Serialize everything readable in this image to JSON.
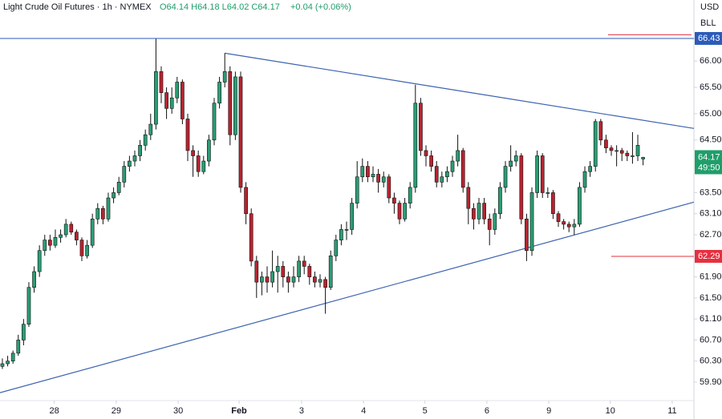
{
  "chart_data": {
    "type": "candlestick",
    "symbol": "Light Crude Oil Futures · 1h · NYMEX",
    "ohlc": "O64.14 H64.18 L64.02 C64.17",
    "change": "+0.04 (+0.06%)",
    "currency": "USD",
    "unit": "BLL",
    "up_color": "#2a9d74",
    "down_color": "#b8232f",
    "candles": [
      [
        60.2,
        60.35,
        60.15,
        60.25
      ],
      [
        60.25,
        60.4,
        60.2,
        60.3
      ],
      [
        60.3,
        60.5,
        60.25,
        60.45
      ],
      [
        60.45,
        60.8,
        60.4,
        60.7
      ],
      [
        60.7,
        61.1,
        60.6,
        61.0
      ],
      [
        61.0,
        61.8,
        60.95,
        61.7
      ],
      [
        61.7,
        62.1,
        61.6,
        62.0
      ],
      [
        62.0,
        62.5,
        61.9,
        62.4
      ],
      [
        62.4,
        62.7,
        62.3,
        62.6
      ],
      [
        62.6,
        62.7,
        62.4,
        62.5
      ],
      [
        62.5,
        62.8,
        62.45,
        62.65
      ],
      [
        62.65,
        62.8,
        62.55,
        62.7
      ],
      [
        62.7,
        63.0,
        62.65,
        62.9
      ],
      [
        62.9,
        62.95,
        62.7,
        62.75
      ],
      [
        62.75,
        62.8,
        62.5,
        62.6
      ],
      [
        62.6,
        62.65,
        62.2,
        62.3
      ],
      [
        62.3,
        62.6,
        62.25,
        62.5
      ],
      [
        62.5,
        63.1,
        62.45,
        63.0
      ],
      [
        63.0,
        63.3,
        62.9,
        63.2
      ],
      [
        63.2,
        63.25,
        62.9,
        63.0
      ],
      [
        63.0,
        63.5,
        62.95,
        63.4
      ],
      [
        63.4,
        63.6,
        63.3,
        63.5
      ],
      [
        63.5,
        63.8,
        63.45,
        63.7
      ],
      [
        63.7,
        64.1,
        63.6,
        64.0
      ],
      [
        64.0,
        64.2,
        63.9,
        64.1
      ],
      [
        64.1,
        64.3,
        64.0,
        64.2
      ],
      [
        64.2,
        64.5,
        64.1,
        64.4
      ],
      [
        64.4,
        64.7,
        64.3,
        64.6
      ],
      [
        64.6,
        65.0,
        64.5,
        64.8
      ],
      [
        64.8,
        66.43,
        64.7,
        65.8
      ],
      [
        65.8,
        65.9,
        65.2,
        65.4
      ],
      [
        65.4,
        65.5,
        64.9,
        65.1
      ],
      [
        65.1,
        65.5,
        65.0,
        65.3
      ],
      [
        65.3,
        65.7,
        65.2,
        65.6
      ],
      [
        65.6,
        65.65,
        64.8,
        64.9
      ],
      [
        64.9,
        65.0,
        64.1,
        64.3
      ],
      [
        64.3,
        64.4,
        63.8,
        64.2
      ],
      [
        64.2,
        64.3,
        63.8,
        63.9
      ],
      [
        63.9,
        64.2,
        63.85,
        64.1
      ],
      [
        64.1,
        64.6,
        64.0,
        64.5
      ],
      [
        64.5,
        65.3,
        64.4,
        65.2
      ],
      [
        65.2,
        65.7,
        65.1,
        65.6
      ],
      [
        65.6,
        66.15,
        65.5,
        65.8
      ],
      [
        65.8,
        65.9,
        64.4,
        64.6
      ],
      [
        64.6,
        65.8,
        64.5,
        65.7
      ],
      [
        65.7,
        65.8,
        63.5,
        63.6
      ],
      [
        63.6,
        63.7,
        62.9,
        63.1
      ],
      [
        63.1,
        63.2,
        62.1,
        62.2
      ],
      [
        62.2,
        62.3,
        61.5,
        61.8
      ],
      [
        61.8,
        62.0,
        61.55,
        61.9
      ],
      [
        61.9,
        62.1,
        61.6,
        61.8
      ],
      [
        61.8,
        62.4,
        61.7,
        62.0
      ],
      [
        62.0,
        62.3,
        61.6,
        62.1
      ],
      [
        62.1,
        62.2,
        61.7,
        61.9
      ],
      [
        61.9,
        62.0,
        61.6,
        61.8
      ],
      [
        61.8,
        62.1,
        61.7,
        61.9
      ],
      [
        61.9,
        62.3,
        61.8,
        62.2
      ],
      [
        62.2,
        62.3,
        61.95,
        62.1
      ],
      [
        62.1,
        62.15,
        61.75,
        61.9
      ],
      [
        61.9,
        62.0,
        61.7,
        61.8
      ],
      [
        61.8,
        61.95,
        61.7,
        61.85
      ],
      [
        61.85,
        61.9,
        61.2,
        61.7
      ],
      [
        61.7,
        62.4,
        61.65,
        62.3
      ],
      [
        62.3,
        62.7,
        62.2,
        62.6
      ],
      [
        62.6,
        62.9,
        62.5,
        62.8
      ],
      [
        62.8,
        62.95,
        62.6,
        62.8
      ],
      [
        62.8,
        63.4,
        62.7,
        63.3
      ],
      [
        63.3,
        64.1,
        63.2,
        63.8
      ],
      [
        63.8,
        64.15,
        63.7,
        64.0
      ],
      [
        64.0,
        64.1,
        63.7,
        63.8
      ],
      [
        63.8,
        64.0,
        63.7,
        63.85
      ],
      [
        63.85,
        63.95,
        63.5,
        63.7
      ],
      [
        63.7,
        63.9,
        63.6,
        63.8
      ],
      [
        63.8,
        63.85,
        63.3,
        63.4
      ],
      [
        63.4,
        63.5,
        63.1,
        63.3
      ],
      [
        63.3,
        63.35,
        62.9,
        63.0
      ],
      [
        63.0,
        63.4,
        62.95,
        63.3
      ],
      [
        63.3,
        63.7,
        63.2,
        63.6
      ],
      [
        63.6,
        65.55,
        63.5,
        65.2
      ],
      [
        65.2,
        65.3,
        64.2,
        64.3
      ],
      [
        64.3,
        64.4,
        64.0,
        64.2
      ],
      [
        64.2,
        64.3,
        63.9,
        64.0
      ],
      [
        64.0,
        64.1,
        63.6,
        63.7
      ],
      [
        63.7,
        63.9,
        63.6,
        63.8
      ],
      [
        63.8,
        64.0,
        63.7,
        63.9
      ],
      [
        63.9,
        64.2,
        63.8,
        64.1
      ],
      [
        64.1,
        64.6,
        64.0,
        64.3
      ],
      [
        64.3,
        64.35,
        63.5,
        63.6
      ],
      [
        63.6,
        63.7,
        62.9,
        63.2
      ],
      [
        63.2,
        63.3,
        62.8,
        63.0
      ],
      [
        63.0,
        63.4,
        62.9,
        63.3
      ],
      [
        63.3,
        63.4,
        62.9,
        63.0
      ],
      [
        63.0,
        63.1,
        62.5,
        62.8
      ],
      [
        62.8,
        63.2,
        62.7,
        63.1
      ],
      [
        63.1,
        63.7,
        63.0,
        63.6
      ],
      [
        63.6,
        64.1,
        63.5,
        64.0
      ],
      [
        64.0,
        64.4,
        63.9,
        64.1
      ],
      [
        64.1,
        64.3,
        64.0,
        64.2
      ],
      [
        64.2,
        64.25,
        62.9,
        63.0
      ],
      [
        63.0,
        63.1,
        62.2,
        62.4
      ],
      [
        62.4,
        63.6,
        62.3,
        63.5
      ],
      [
        63.5,
        64.3,
        63.4,
        64.2
      ],
      [
        64.2,
        64.25,
        63.4,
        63.5
      ],
      [
        63.5,
        63.6,
        63.4,
        63.5
      ],
      [
        63.5,
        63.55,
        63.0,
        63.1
      ],
      [
        63.1,
        63.15,
        62.85,
        62.95
      ],
      [
        62.95,
        63.0,
        62.8,
        62.9
      ],
      [
        62.9,
        62.95,
        62.75,
        62.85
      ],
      [
        62.85,
        63.0,
        62.7,
        62.9
      ],
      [
        62.9,
        63.7,
        62.85,
        63.6
      ],
      [
        63.6,
        64.0,
        63.5,
        63.9
      ],
      [
        63.9,
        64.1,
        63.8,
        64.0
      ],
      [
        64.0,
        64.9,
        63.9,
        64.85
      ],
      [
        64.85,
        64.9,
        64.4,
        64.5
      ],
      [
        64.5,
        64.6,
        64.25,
        64.35
      ],
      [
        64.35,
        64.4,
        64.2,
        64.3
      ],
      [
        64.3,
        64.4,
        64.0,
        64.3
      ],
      [
        64.3,
        64.35,
        64.1,
        64.25
      ],
      [
        64.25,
        64.3,
        64.1,
        64.2
      ],
      [
        64.2,
        64.65,
        64.05,
        64.2
      ],
      [
        64.2,
        64.6,
        64.1,
        64.4
      ],
      [
        64.14,
        64.18,
        64.02,
        64.17
      ]
    ],
    "xlim": [
      -0.45,
      130.6
    ],
    "xticks": [
      {
        "value": 9.8,
        "label": "28"
      },
      {
        "value": 21.5,
        "label": "29"
      },
      {
        "value": 33.2,
        "label": "30"
      },
      {
        "value": 44.7,
        "label": "Feb"
      },
      {
        "value": 56.5,
        "label": "3"
      },
      {
        "value": 68.2,
        "label": "4"
      },
      {
        "value": 79.8,
        "label": "5"
      },
      {
        "value": 91.5,
        "label": "6"
      },
      {
        "value": 103.2,
        "label": "9"
      },
      {
        "value": 114.8,
        "label": "10"
      },
      {
        "value": 126.5,
        "label": "11"
      }
    ],
    "ylim": [
      59.55,
      67.16
    ],
    "yticks": [
      {
        "value": 66.0,
        "label": "66.00"
      },
      {
        "value": 65.5,
        "label": "65.50"
      },
      {
        "value": 65.0,
        "label": "65.00"
      },
      {
        "value": 64.5,
        "label": "64.50"
      },
      {
        "value": 63.5,
        "label": "63.50"
      },
      {
        "value": 63.1,
        "label": "63.10"
      },
      {
        "value": 62.7,
        "label": "62.70"
      },
      {
        "value": 61.9,
        "label": "61.90"
      },
      {
        "value": 61.5,
        "label": "61.50"
      },
      {
        "value": 61.1,
        "label": "61.10"
      },
      {
        "value": 60.7,
        "label": "60.70"
      },
      {
        "value": 60.3,
        "label": "60.30"
      },
      {
        "value": 59.9,
        "label": "59.90"
      }
    ],
    "levels": [
      {
        "value": 66.43,
        "label": "66.43",
        "color": "#2c5bb8",
        "span": "full"
      },
      {
        "value": 62.29,
        "label": "62.29",
        "color": "#e5303f",
        "span": "short"
      }
    ],
    "marker_level": {
      "value": 66.5,
      "color": "#e5303f"
    },
    "last_price": {
      "value": 64.17,
      "countdown": "49:50",
      "color": "#1f9e6a"
    },
    "trendlines": [
      {
        "x": [
          42,
          130.6
        ],
        "y": [
          66.15,
          64.72
        ],
        "color": "#3d63b0"
      },
      {
        "x": [
          -0.45,
          130.6
        ],
        "y": [
          59.7,
          63.32
        ],
        "color": "#3d63b0"
      }
    ]
  }
}
